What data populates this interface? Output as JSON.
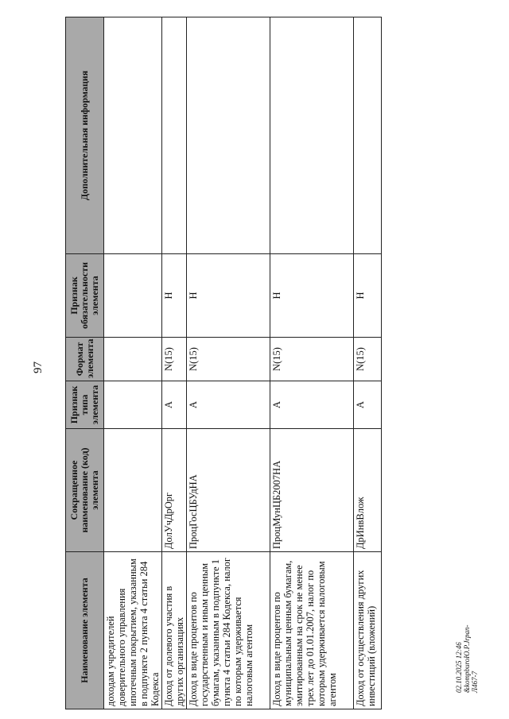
{
  "page_number": "97",
  "footer": {
    "line1": "02.10.2025 12:46",
    "line2": "&kompburoЮ.Р.Jrpan-Л467-7"
  },
  "table": {
    "headers": [
      "Наименование элемента",
      "Сокращенное наименование (код) элемента",
      "Признак типа элемента",
      "Формат элемента",
      "Признак обязательности элемента",
      "Дополнительная информация"
    ],
    "rows": [
      [
        "доходам учредителей доверительного управления ипотечным покрытием, указанным в подпункте 2 пункта 4 статьи 284 Кодекса",
        "",
        "",
        "",
        "",
        ""
      ],
      [
        "Доход от долевого участия в других организациях",
        "ДолУчДрОрг",
        "А",
        "N(15)",
        "Н",
        ""
      ],
      [
        "Доход в виде процентов по государственным и иным ценным бумагам, указанным в подпункте 1 пункта 4 статьи 284 Кодекса, налог по которым удерживается налоговым агентом",
        "ПроцГосЦБУдНА",
        "А",
        "N(15)",
        "Н",
        ""
      ],
      [
        "Доход в виде процентов по муниципальным ценным бумагам, эмитированным на срок не менее трех лет до 01.01.2007, налог по которым удерживается налоговым агентом",
        "ПроцМунЦБ2007НА",
        "А",
        "N(15)",
        "Н",
        ""
      ],
      [
        "Доход от осуществления других инвестиций (вложений)",
        "ДрИнвВлож",
        "А",
        "N(15)",
        "Н",
        ""
      ]
    ]
  }
}
